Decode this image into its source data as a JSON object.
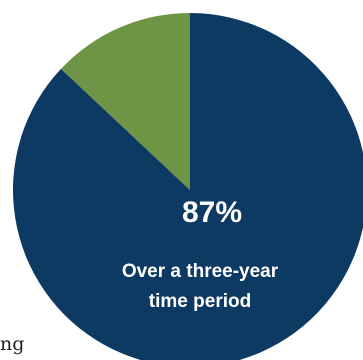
{
  "chart_data": {
    "type": "pie",
    "slices": [
      {
        "label": "87%",
        "value": 87,
        "color": "#0d3a63"
      },
      {
        "label": "",
        "value": 13,
        "color": "#6e9446"
      }
    ],
    "annotation": {
      "value_label": "87%",
      "caption_line1": "Over a three-year",
      "caption_line2": "time period"
    }
  },
  "background_text_fragment": "ng"
}
